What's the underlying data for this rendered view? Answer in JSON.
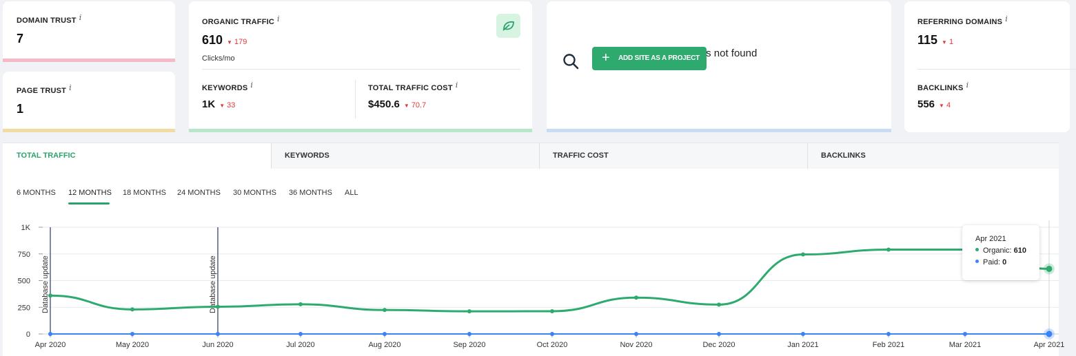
{
  "colors": {
    "green": "#2eaa6f",
    "blue": "#3b82f6",
    "red": "#e03a3a",
    "pink": "#f7b9c8",
    "yellow": "#f1dca2",
    "lightgreen": "#b9e6c9",
    "lightblue": "#c9dcf2"
  },
  "domain_trust": {
    "label": "DOMAIN TRUST",
    "info": "i",
    "value": "7"
  },
  "page_trust": {
    "label": "PAGE TRUST",
    "info": "i",
    "value": "1"
  },
  "organic": {
    "label": "ORGANIC TRAFFIC",
    "info": "i",
    "value": "610",
    "delta": "179",
    "sub": "Clicks/mo",
    "icon": "leaf-icon",
    "keywords": {
      "label": "KEYWORDS",
      "info": "i",
      "value": "1K",
      "delta": "33"
    },
    "cost": {
      "label": "TOTAL TRAFFIC COST",
      "info": "i",
      "value": "$450.6",
      "delta": "70.7"
    }
  },
  "notfound": {
    "message": "The data on chatto.com is not found",
    "button": "ADD SITE AS A PROJECT",
    "icon": "search-icon"
  },
  "referring": {
    "label": "REFERRING DOMAINS",
    "info": "i",
    "value": "115",
    "delta": "1"
  },
  "backlinks": {
    "label": "BACKLINKS",
    "info": "i",
    "value": "556",
    "delta": "4"
  },
  "tabs": [
    "TOTAL TRAFFIC",
    "KEYWORDS",
    "TRAFFIC COST",
    "BACKLINKS"
  ],
  "ranges": [
    "6 MONTHS",
    "12 MONTHS",
    "18 MONTHS",
    "24 MONTHS",
    "30 MONTHS",
    "36 MONTHS",
    "ALL"
  ],
  "active_range": 1,
  "chart_data": {
    "type": "line",
    "categories": [
      "Apr 2020",
      "May 2020",
      "Jun 2020",
      "Jul 2020",
      "Aug 2020",
      "Sep 2020",
      "Oct 2020",
      "Nov 2020",
      "Dec 2020",
      "Jan 2021",
      "Feb 2021",
      "Mar 2021",
      "Apr 2021"
    ],
    "series": [
      {
        "name": "Organic",
        "values": [
          360,
          230,
          255,
          278,
          225,
          212,
          213,
          340,
          275,
          745,
          790,
          790,
          610
        ]
      },
      {
        "name": "Paid",
        "values": [
          0,
          0,
          0,
          0,
          0,
          0,
          0,
          0,
          0,
          0,
          0,
          0,
          0
        ]
      }
    ],
    "yticks": [
      "0",
      "250",
      "500",
      "750",
      "1K"
    ],
    "ylim": [
      0,
      1000
    ],
    "annotations": [
      {
        "x": "Apr 2020",
        "text": "Database update"
      },
      {
        "x": "Jun 2020",
        "text": "Database update"
      }
    ],
    "grid": true
  },
  "tooltip": {
    "title": "Apr 2021",
    "organic_label": "Organic: ",
    "organic_value": "610",
    "paid_label": "Paid: ",
    "paid_value": "0"
  }
}
